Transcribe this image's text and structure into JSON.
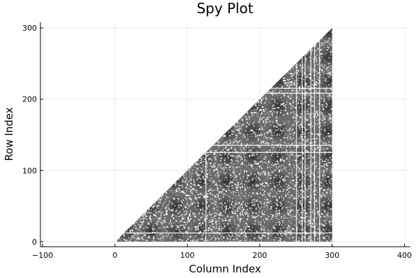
{
  "chart_data": {
    "type": "heatmap",
    "subtype": "spy",
    "title": "Spy Plot",
    "xlabel": "Column Index",
    "ylabel": "Row Index",
    "xlim": [
      -103,
      408
    ],
    "ylim": [
      -7,
      308
    ],
    "xticks": [
      -100,
      0,
      100,
      200,
      300,
      400
    ],
    "xtick_labels": [
      "−100",
      "0",
      "100",
      "200",
      "300",
      "400"
    ],
    "yticks": [
      0,
      100,
      200,
      300
    ],
    "ytick_labels": [
      "0",
      "100",
      "200",
      "300"
    ],
    "grid": true,
    "legend": "none",
    "matrix": {
      "size": 300,
      "structure": "lower-triangular (row ≤ column), dense with sparse gaps",
      "column_range": [
        0,
        300
      ],
      "row_range": [
        0,
        300
      ]
    },
    "colors": {
      "fill": "#3a3a3a",
      "fill_light": "#6c6c6c",
      "gap": "#ffffff",
      "grid": "#ebebeb",
      "axis": "#000000"
    }
  }
}
